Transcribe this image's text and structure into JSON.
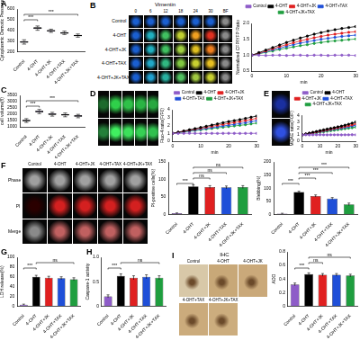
{
  "chart_data": [
    {
      "panel_label": "A",
      "type": "box",
      "y_label": "Cytoplasmic Osmotic Pressure",
      "categories": [
        "Control",
        "4-OHT",
        "4-OHT+JK",
        "4-OHT+TAX",
        "4-OHT+JK+TAX"
      ],
      "stats": [
        {
          "min": 270,
          "q1": 282,
          "median": 290,
          "q3": 298,
          "max": 310
        },
        {
          "min": 400,
          "q1": 412,
          "median": 420,
          "q3": 428,
          "max": 440
        },
        {
          "min": 380,
          "q1": 388,
          "median": 395,
          "q3": 402,
          "max": 410
        },
        {
          "min": 360,
          "q1": 368,
          "median": 375,
          "q3": 382,
          "max": 392
        },
        {
          "min": 335,
          "q1": 344,
          "median": 350,
          "q3": 356,
          "max": 365
        }
      ],
      "color": "#b39ddb",
      "ylim": [
        200,
        600
      ],
      "yticks": [
        200,
        300,
        400,
        500,
        600
      ],
      "grid": false,
      "significance": [
        {
          "from": "Control",
          "to": "4-OHT",
          "label": "***"
        },
        {
          "from": "Control",
          "to": "4-OHT+JK+TAX",
          "label": "***"
        }
      ]
    },
    {
      "type": "line",
      "y_label": "Normalized CFP/YFP Ratio",
      "x_label": "min",
      "x": [
        0,
        2,
        4,
        6,
        8,
        10,
        12,
        14,
        16,
        18,
        20,
        22,
        24,
        26,
        28,
        30
      ],
      "series": [
        {
          "name": "Control",
          "color": "#8e5cc8",
          "marker": "circle",
          "values": [
            1.0,
            1.0,
            0.99,
            1.0,
            1.0,
            0.99,
            1.0,
            1.0,
            0.99,
            1.0,
            1.0,
            0.99,
            1.0,
            1.0,
            1.0,
            0.99
          ]
        },
        {
          "name": "4-OHT",
          "color": "#000000",
          "marker": "circle",
          "values": [
            1.0,
            1.08,
            1.16,
            1.24,
            1.32,
            1.4,
            1.47,
            1.54,
            1.6,
            1.66,
            1.71,
            1.76,
            1.8,
            1.84,
            1.87,
            1.9
          ]
        },
        {
          "name": "4-OHT+JK",
          "color": "#e02020",
          "marker": "circle",
          "values": [
            1.0,
            1.06,
            1.13,
            1.2,
            1.27,
            1.33,
            1.39,
            1.45,
            1.5,
            1.55,
            1.59,
            1.63,
            1.66,
            1.69,
            1.72,
            1.74
          ]
        },
        {
          "name": "4-OHT+TAX",
          "color": "#1f4fd8",
          "marker": "circle",
          "values": [
            1.0,
            1.05,
            1.11,
            1.17,
            1.22,
            1.28,
            1.33,
            1.38,
            1.42,
            1.46,
            1.5,
            1.53,
            1.56,
            1.59,
            1.61,
            1.63
          ]
        },
        {
          "name": "4-OHT+JK+TAX",
          "color": "#1f9e3f",
          "marker": "circle",
          "values": [
            1.0,
            1.04,
            1.09,
            1.13,
            1.18,
            1.22,
            1.26,
            1.3,
            1.33,
            1.37,
            1.4,
            1.43,
            1.45,
            1.47,
            1.49,
            1.51
          ]
        }
      ],
      "xlim": [
        0,
        30
      ],
      "xticks": [
        0,
        10,
        20,
        30
      ],
      "ylim": [
        0.5,
        2
      ],
      "yticks": [
        0.5,
        {
          "value": 1,
          "label": "1.0"
        },
        1.5,
        {
          "value": 2,
          "label": "2.0"
        }
      ],
      "legend": "top",
      "grid": false
    },
    {
      "panel_label": "C",
      "type": "box",
      "y_label": "cell volume(fl)",
      "categories": [
        "Control",
        "4-OHT",
        "4-OHT+JK",
        "4-OHT+TAX",
        "4-OHT+JK+TAX"
      ],
      "stats": [
        {
          "min": 1350,
          "q1": 1450,
          "median": 1500,
          "q3": 1560,
          "max": 1650
        },
        {
          "min": 2050,
          "q1": 2150,
          "median": 2220,
          "q3": 2290,
          "max": 2380
        },
        {
          "min": 1850,
          "q1": 1950,
          "median": 2010,
          "q3": 2080,
          "max": 2150
        },
        {
          "min": 1800,
          "q1": 1900,
          "median": 1960,
          "q3": 2020,
          "max": 2100
        },
        {
          "min": 1720,
          "q1": 1800,
          "median": 1860,
          "q3": 1920,
          "max": 1990
        }
      ],
      "color": "#b39ddb",
      "ylim": [
        1000,
        3500
      ],
      "yticks": [
        1000,
        1500,
        2000,
        2500,
        3000,
        3500
      ],
      "grid": false,
      "significance": [
        {
          "from": "Control",
          "to": "4-OHT",
          "label": "***"
        },
        {
          "from": "Control",
          "to": "4-OHT+JK+TAX",
          "label": "***"
        }
      ]
    },
    {
      "type": "line",
      "y_label": "Fluo-4 ratio(F/F0)",
      "x_label": "min",
      "x": [
        0,
        2,
        4,
        6,
        8,
        10,
        12,
        14,
        16,
        18,
        20,
        22,
        24,
        26,
        28,
        30
      ],
      "series": [
        {
          "name": "Control",
          "color": "#8e5cc8",
          "marker": "circle",
          "values": [
            1.0,
            0.99,
            1.0,
            1.01,
            1.0,
            0.99,
            1.0,
            1.0,
            0.99,
            1.0,
            1.01,
            1.0,
            0.99,
            1.0,
            1.0,
            1.0
          ]
        },
        {
          "name": "4-OHT",
          "color": "#000000",
          "marker": "circle",
          "values": [
            1.0,
            1.15,
            1.3,
            1.45,
            1.6,
            1.75,
            1.9,
            2.05,
            2.2,
            2.35,
            2.5,
            2.62,
            2.75,
            2.9,
            3.05,
            3.2
          ]
        },
        {
          "name": "4-OHT+JK",
          "color": "#e02020",
          "marker": "circle",
          "values": [
            1.0,
            1.13,
            1.26,
            1.39,
            1.52,
            1.65,
            1.78,
            1.9,
            2.02,
            2.14,
            2.26,
            2.38,
            2.5,
            2.62,
            2.76,
            2.9
          ]
        },
        {
          "name": "4-OHT+TAX",
          "color": "#1f4fd8",
          "marker": "circle",
          "values": [
            1.0,
            1.1,
            1.21,
            1.32,
            1.43,
            1.54,
            1.64,
            1.74,
            1.84,
            1.94,
            2.04,
            2.14,
            2.24,
            2.35,
            2.48,
            2.6
          ]
        },
        {
          "name": "4-OHT+JK+TAX",
          "color": "#1f9e3f",
          "marker": "circle",
          "values": [
            1.0,
            1.09,
            1.18,
            1.27,
            1.36,
            1.45,
            1.54,
            1.62,
            1.7,
            1.78,
            1.86,
            1.94,
            2.02,
            2.1,
            2.2,
            2.3
          ]
        }
      ],
      "xlim": [
        0,
        30
      ],
      "xticks": [
        0,
        10,
        20,
        30
      ],
      "ylim": [
        0,
        4
      ],
      "yticks": [
        0,
        1,
        2,
        3,
        4
      ],
      "legend": "top",
      "grid": false
    },
    {
      "type": "line",
      "y_label": "MQAE ratio(F0/F)",
      "x_label": "min",
      "x": [
        0,
        2,
        4,
        6,
        8,
        10,
        12,
        14,
        16,
        18,
        20,
        22,
        24,
        26,
        28,
        30
      ],
      "series": [
        {
          "name": "Control",
          "color": "#8e5cc8",
          "marker": "circle",
          "values": [
            1.0,
            1.0,
            0.99,
            1.0,
            1.0,
            1.01,
            1.0,
            0.99,
            1.0,
            1.0,
            1.0,
            0.99,
            1.0,
            1.0,
            1.01,
            1.0
          ]
        },
        {
          "name": "4-OHT",
          "color": "#000000",
          "marker": "circle",
          "values": [
            1.0,
            1.13,
            1.26,
            1.39,
            1.52,
            1.65,
            1.77,
            1.89,
            2.0,
            2.12,
            2.24,
            2.36,
            2.5,
            2.65,
            2.82,
            3.0
          ]
        },
        {
          "name": "4-OHT+JK",
          "color": "#e02020",
          "marker": "circle",
          "values": [
            1.0,
            1.11,
            1.22,
            1.33,
            1.44,
            1.55,
            1.66,
            1.77,
            1.88,
            1.99,
            2.1,
            2.2,
            2.31,
            2.43,
            2.56,
            2.7
          ]
        },
        {
          "name": "4-OHT+TAX",
          "color": "#1f4fd8",
          "marker": "circle",
          "values": [
            1.0,
            1.1,
            1.2,
            1.3,
            1.4,
            1.5,
            1.6,
            1.7,
            1.8,
            1.9,
            2.0,
            2.08,
            2.17,
            2.27,
            2.38,
            2.5
          ]
        },
        {
          "name": "4-OHT+JK+TAX",
          "color": "#1f9e3f",
          "marker": "circle",
          "values": [
            1.0,
            1.08,
            1.16,
            1.24,
            1.32,
            1.4,
            1.48,
            1.56,
            1.64,
            1.72,
            1.8,
            1.88,
            1.95,
            2.03,
            2.11,
            2.2
          ]
        }
      ],
      "xlim": [
        0,
        30
      ],
      "xticks": [
        0,
        10,
        20,
        30
      ],
      "ylim": [
        0,
        4
      ],
      "yticks": [
        0,
        1,
        2,
        3,
        4
      ],
      "legend": "top",
      "grid": false
    },
    {
      "type": "bar",
      "y_label": "PI-positive cells(%)",
      "categories": [
        "Control",
        "4-OHT",
        "4-OHT+JK",
        "4-OHT+TAX",
        "4-OHT+JK+TAX"
      ],
      "values": [
        3,
        80,
        78,
        77,
        78
      ],
      "errors": [
        1,
        4,
        4,
        4,
        4
      ],
      "colors": [
        "#8e5cc8",
        "#000000",
        "#e02020",
        "#1f4fd8",
        "#1f9e3f"
      ],
      "ylim": [
        0,
        150
      ],
      "yticks": [
        0,
        50,
        100,
        150
      ],
      "grid": false,
      "significance": [
        {
          "from": "Control",
          "to": "4-OHT",
          "label": "***"
        },
        {
          "from": "4-OHT",
          "to": "4-OHT+JK",
          "label": "ns"
        },
        {
          "from": "4-OHT",
          "to": "4-OHT+TAX",
          "label": "ns"
        },
        {
          "from": "4-OHT",
          "to": "4-OHT+JK+TAX",
          "label": "ns"
        }
      ]
    },
    {
      "type": "bar",
      "y_label": "Blebbing(%)",
      "categories": [
        "Control",
        "4-OHT",
        "4-OHT+JK",
        "4-OHT+TAX",
        "4-OHT+JK+TAX"
      ],
      "values": [
        3,
        85,
        70,
        60,
        38
      ],
      "errors": [
        1,
        3,
        4,
        4,
        5
      ],
      "colors": [
        "#8e5cc8",
        "#000000",
        "#e02020",
        "#1f4fd8",
        "#1f9e3f"
      ],
      "ylim": [
        0,
        200
      ],
      "yticks": [
        0,
        50,
        100,
        150,
        200
      ],
      "grid": false,
      "significance": [
        {
          "from": "Control",
          "to": "4-OHT",
          "label": "***"
        },
        {
          "from": "4-OHT",
          "to": "4-OHT+JK",
          "label": "***"
        },
        {
          "from": "4-OHT",
          "to": "4-OHT+TAX",
          "label": "***"
        },
        {
          "from": "4-OHT",
          "to": "4-OHT+JK+TAX",
          "label": "***"
        }
      ]
    },
    {
      "panel_label": "G",
      "type": "bar",
      "y_label": "LDH release(%)",
      "categories": [
        "Control",
        "4-OHT",
        "4-OHT+JK",
        "4-OHT+TAX",
        "4-OHT+JK+TAX"
      ],
      "values": [
        3,
        60,
        58,
        57,
        55
      ],
      "errors": [
        1,
        3,
        3,
        3,
        3
      ],
      "colors": [
        "#8e5cc8",
        "#000000",
        "#e02020",
        "#1f4fd8",
        "#1f9e3f"
      ],
      "ylim": [
        0,
        100
      ],
      "yticks": [
        0,
        20,
        40,
        60,
        80,
        100
      ],
      "grid": false,
      "significance": [
        {
          "from": "Control",
          "to": "4-OHT",
          "label": "***"
        },
        {
          "from": "4-OHT",
          "to": "4-OHT+JK+TAX",
          "label": "ns"
        }
      ]
    },
    {
      "panel_label": "H",
      "type": "bar",
      "y_label": "Caspase-1 activity",
      "categories": [
        "Control",
        "4-OHT",
        "4-OHT+JK",
        "4-OHT+TAX",
        "4-OHT+JK+TAX"
      ],
      "values": [
        0.2,
        0.62,
        0.58,
        0.6,
        0.58
      ],
      "errors": [
        0.03,
        0.04,
        0.04,
        0.04,
        0.04
      ],
      "colors": [
        "#8e5cc8",
        "#000000",
        "#e02020",
        "#1f4fd8",
        "#1f9e3f"
      ],
      "ylim": [
        0,
        1
      ],
      "yticks": [
        0,
        0.5,
        {
          "value": 1,
          "label": "1.0"
        }
      ],
      "grid": false,
      "significance": [
        {
          "from": "Control",
          "to": "4-OHT",
          "label": "***"
        },
        {
          "from": "4-OHT",
          "to": "4-OHT+JK+TAX",
          "label": "ns"
        }
      ]
    },
    {
      "type": "bar",
      "y_label": "AOD",
      "categories": [
        "Control",
        "4-OHT",
        "4-OHT+JK",
        "4-OHT+TAX",
        "4-OHT+JK+TAX"
      ],
      "values": [
        0.32,
        0.47,
        0.46,
        0.46,
        0.45
      ],
      "errors": [
        0.02,
        0.02,
        0.02,
        0.02,
        0.02
      ],
      "colors": [
        "#8e5cc8",
        "#000000",
        "#e02020",
        "#1f4fd8",
        "#1f9e3f"
      ],
      "ylim": [
        0,
        0.8
      ],
      "yticks": [
        0,
        0.2,
        0.4,
        0.6,
        0.8
      ],
      "grid": false,
      "significance": [
        {
          "from": "Control",
          "to": "4-OHT",
          "label": "***"
        },
        {
          "from": "4-OHT",
          "to": "4-OHT+JK",
          "label": "ns"
        },
        {
          "from": "4-OHT",
          "to": "4-OHT+JK+TAX",
          "label": "ns"
        }
      ]
    }
  ],
  "images": [
    {
      "panel_label": "B",
      "title": "Vimentin",
      "columns": [
        "0",
        "6",
        "12",
        "18",
        "24",
        "30",
        "BF"
      ],
      "row_labels": [
        "Control",
        "4-OHT",
        "4-OHT+JK",
        "4-OHT+TAX",
        "4-OHT+JK+TAX"
      ],
      "tile_colors": [
        [
          "#1a5fd0",
          "#1a5fd0",
          "#1a5fd0",
          "#1a5fd0",
          "#1a5fd0",
          "#1a5fd0",
          "#8a8a8a"
        ],
        [
          "#1a5fd0",
          "#20b0c0",
          "#40c060",
          "#c0d030",
          "#f0a020",
          "#e03020",
          "#8a8a8a"
        ],
        [
          "#1a5fd0",
          "#20b0c0",
          "#40c060",
          "#a0d040",
          "#e0c020",
          "#f08020",
          "#8a8a8a"
        ],
        [
          "#1a5fd0",
          "#20a8c8",
          "#30b880",
          "#80c840",
          "#c8d030",
          "#e8c020",
          "#8a8a8a"
        ],
        [
          "#1a5fd0",
          "#20a0d0",
          "#28b0a0",
          "#50c060",
          "#a0c840",
          "#c8d030",
          "#8a8a8a"
        ]
      ]
    },
    {
      "panel_label": "D",
      "tile_colors": [
        [
          "#1c6a2c",
          "#2fd04a",
          "#2fc048",
          "#2ab444",
          "#28a840"
        ],
        [
          "#24803a",
          "#40f060",
          "#3ce05a",
          "#36d054",
          "#30c04e"
        ]
      ]
    },
    {
      "panel_label": "E",
      "tile_colors": [
        [
          "#1a2fa0"
        ],
        [
          "#2f50e0"
        ]
      ]
    },
    {
      "panel_label": "F",
      "columns": [
        "Control",
        "4-OHT",
        "4-OHT+JK",
        "4-OHT+TAX",
        "4-OHT+JK+TAX"
      ],
      "row_labels": [
        "Phase",
        "PI",
        "Merge"
      ],
      "tile_colors": [
        [
          "#a0a0a0",
          "#a0a0a0",
          "#a0a0a0",
          "#a0a0a0",
          "#a0a0a0"
        ],
        [
          "#2a0000",
          "#d42020",
          "#d42020",
          "#d42020",
          "#d42020"
        ],
        [
          "#8a8a8a",
          "#c06060",
          "#c06060",
          "#c06060",
          "#c06060"
        ]
      ]
    },
    {
      "panel_label": "I",
      "title": "IHC",
      "tiles": [
        {
          "label": "Control",
          "color": "#d8c8a8"
        },
        {
          "label": "4-OHT",
          "color": "#c8a878"
        },
        {
          "label": "4-OHT+JK",
          "color": "#caa97a"
        },
        {
          "label": "4-OHT+TAX",
          "color": "#cbab7c"
        },
        {
          "label": "4-OHT+JK+TAX",
          "color": "#ccad7e"
        }
      ]
    }
  ]
}
